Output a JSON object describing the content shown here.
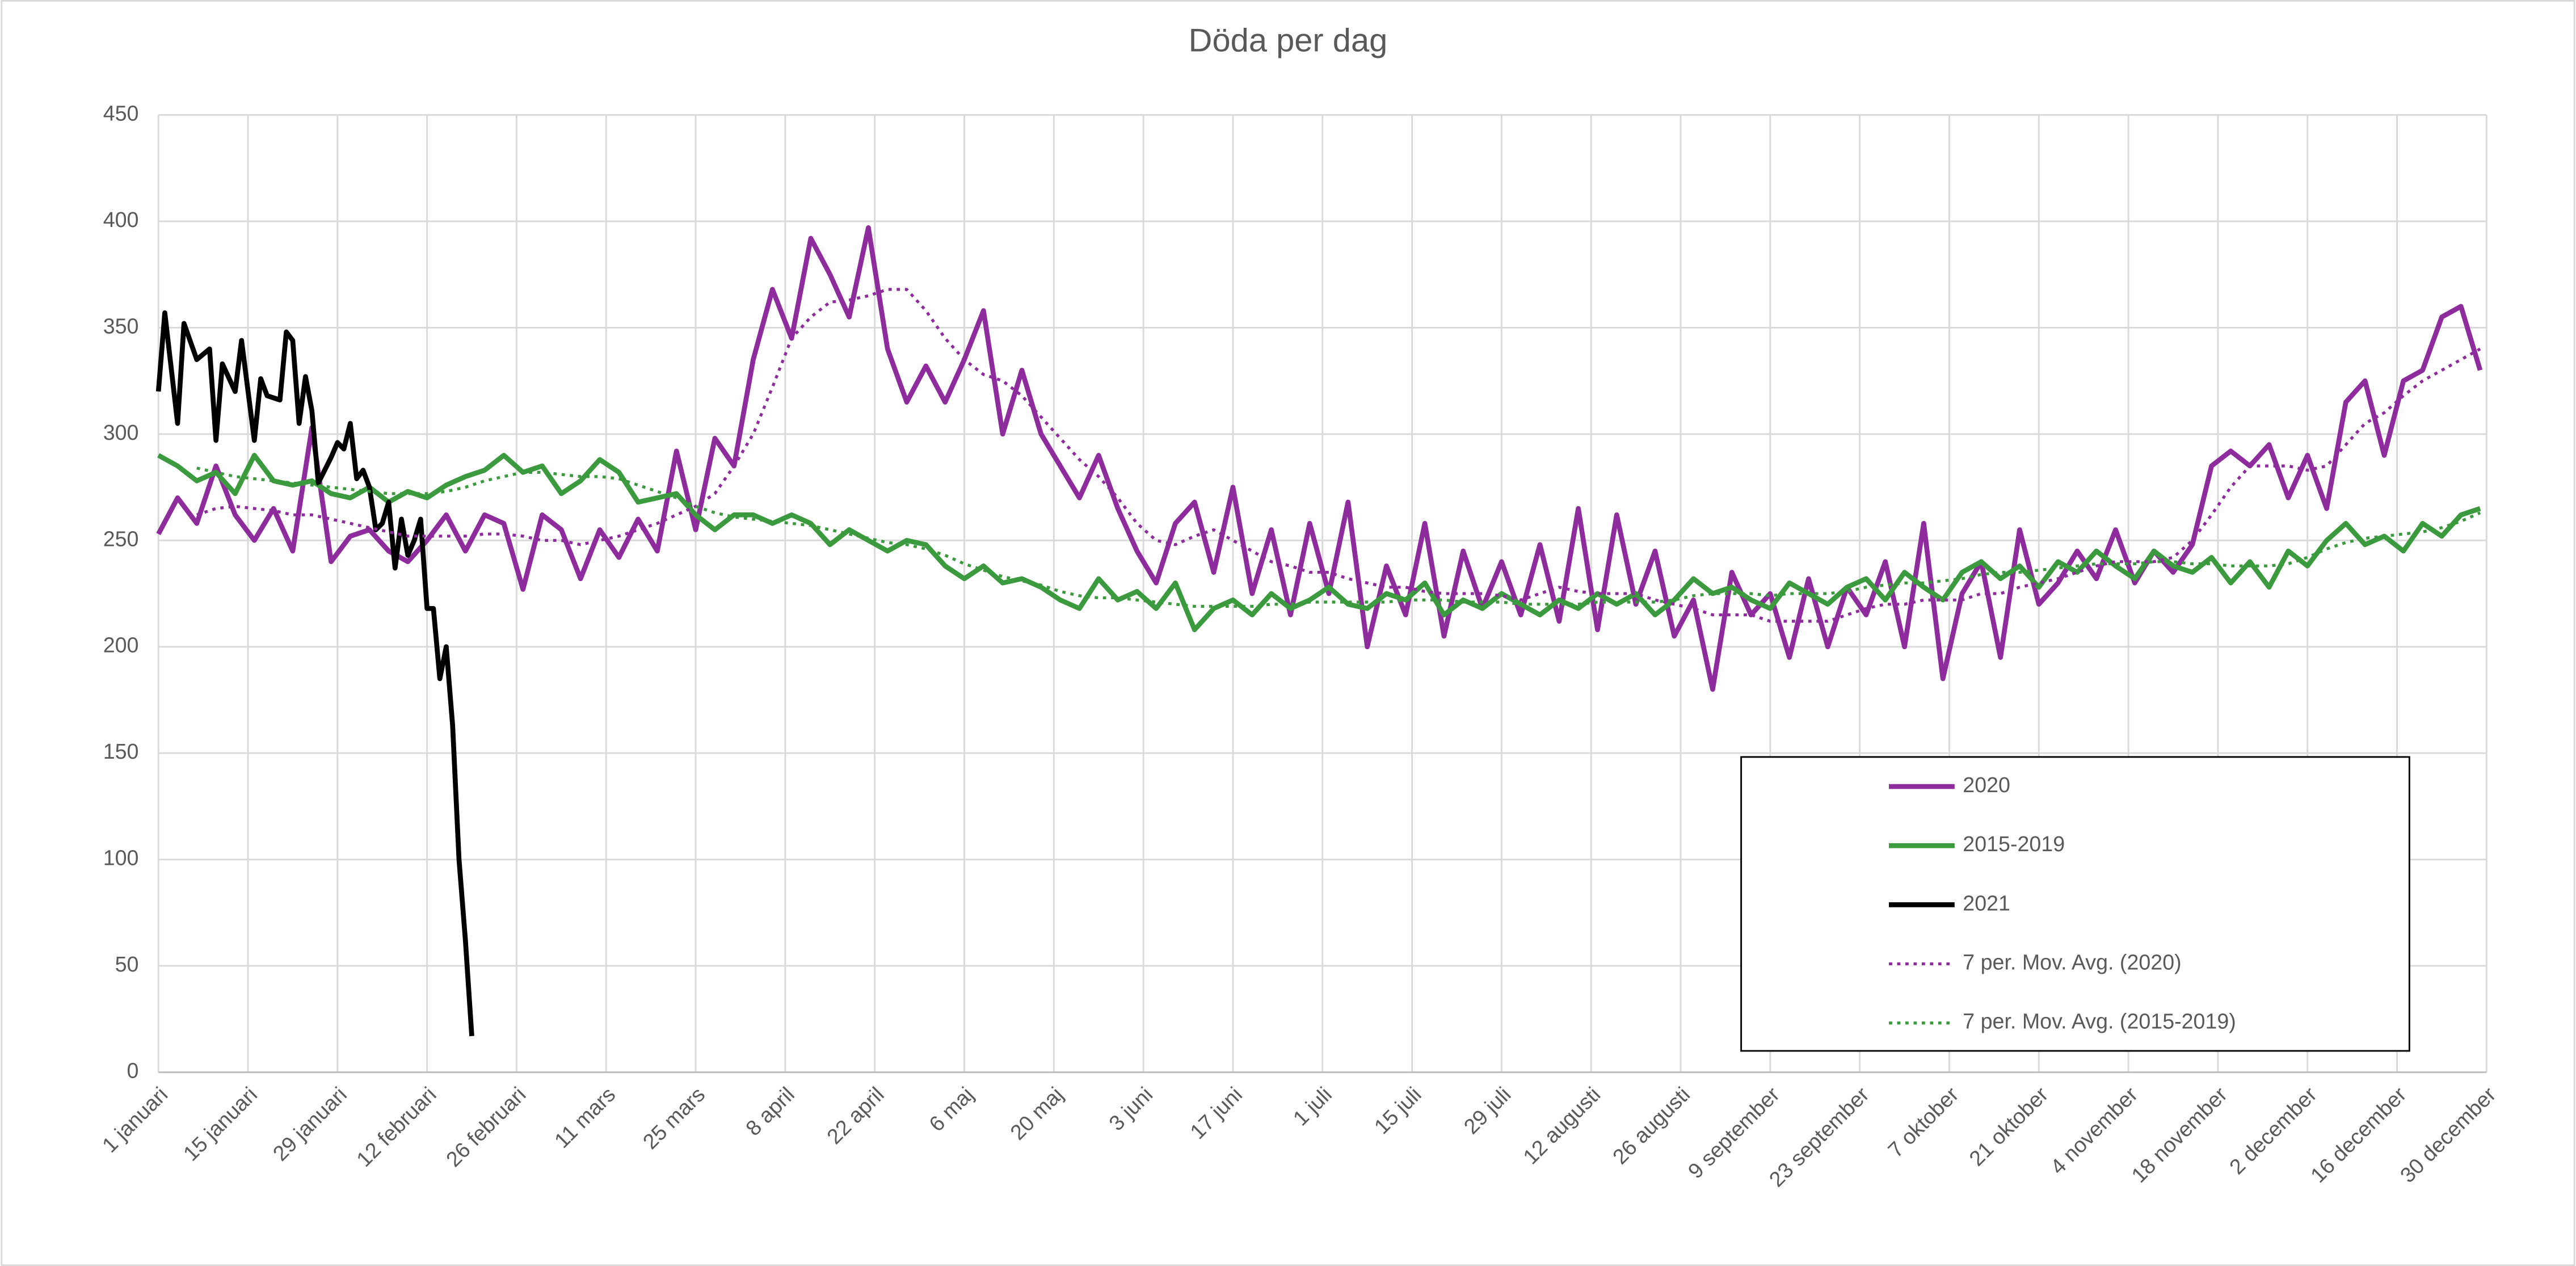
{
  "chart_data": {
    "type": "line",
    "title": "Döda per dag",
    "xlim": [
      0,
      364
    ],
    "xticks": [
      {
        "value": 0,
        "label": "1 januari"
      },
      {
        "value": 14,
        "label": "15 januari"
      },
      {
        "value": 28,
        "label": "29 januari"
      },
      {
        "value": 42,
        "label": "12 februari"
      },
      {
        "value": 56,
        "label": "26 februari"
      },
      {
        "value": 70,
        "label": "11 mars"
      },
      {
        "value": 84,
        "label": "25 mars"
      },
      {
        "value": 98,
        "label": "8 april"
      },
      {
        "value": 112,
        "label": "22 april"
      },
      {
        "value": 126,
        "label": "6 maj"
      },
      {
        "value": 140,
        "label": "20 maj"
      },
      {
        "value": 154,
        "label": "3 juni"
      },
      {
        "value": 168,
        "label": "17 juni"
      },
      {
        "value": 182,
        "label": "1 juli"
      },
      {
        "value": 196,
        "label": "15 juli"
      },
      {
        "value": 210,
        "label": "29 juli"
      },
      {
        "value": 224,
        "label": "12 augusti"
      },
      {
        "value": 238,
        "label": "26 augusti"
      },
      {
        "value": 252,
        "label": "9 september"
      },
      {
        "value": 266,
        "label": "23 september"
      },
      {
        "value": 280,
        "label": "7 oktober"
      },
      {
        "value": 294,
        "label": "21 oktober"
      },
      {
        "value": 308,
        "label": "4 november"
      },
      {
        "value": 322,
        "label": "18 november"
      },
      {
        "value": 336,
        "label": "2 december"
      },
      {
        "value": 350,
        "label": "16 december"
      },
      {
        "value": 364,
        "label": "30 december"
      }
    ],
    "ylim": [
      0,
      450
    ],
    "yticks": [
      0,
      50,
      100,
      150,
      200,
      250,
      300,
      350,
      400,
      450
    ],
    "grid": true,
    "legend": "lower right",
    "x": [
      0,
      3,
      6,
      9,
      12,
      15,
      18,
      21,
      24,
      27,
      30,
      33,
      36,
      39,
      42,
      45,
      48,
      51,
      54,
      57,
      60,
      63,
      66,
      69,
      72,
      75,
      78,
      81,
      84,
      87,
      90,
      93,
      96,
      99,
      102,
      105,
      108,
      111,
      114,
      117,
      120,
      123,
      126,
      129,
      132,
      135,
      138,
      141,
      144,
      147,
      150,
      153,
      156,
      159,
      162,
      165,
      168,
      171,
      174,
      177,
      180,
      183,
      186,
      189,
      192,
      195,
      198,
      201,
      204,
      207,
      210,
      213,
      216,
      219,
      222,
      225,
      228,
      231,
      234,
      237,
      240,
      243,
      246,
      249,
      252,
      255,
      258,
      261,
      264,
      267,
      270,
      273,
      276,
      279,
      282,
      285,
      288,
      291,
      294,
      297,
      300,
      303,
      306,
      309,
      312,
      315,
      318,
      321,
      324,
      327,
      330,
      333,
      336,
      339,
      342,
      345,
      348,
      351,
      354,
      357,
      360,
      363
    ],
    "series": [
      {
        "name": "2020",
        "color": "#8e2c9e",
        "style": "solid",
        "width": 3,
        "values": [
          253,
          270,
          258,
          285,
          262,
          250,
          265,
          245,
          303,
          240,
          252,
          255,
          245,
          240,
          250,
          262,
          245,
          262,
          258,
          227,
          262,
          255,
          232,
          255,
          242,
          260,
          245,
          292,
          255,
          298,
          285,
          335,
          368,
          345,
          392,
          375,
          355,
          397,
          340,
          315,
          332,
          315,
          335,
          358,
          300,
          330,
          300,
          285,
          270,
          290,
          265,
          245,
          230,
          258,
          268,
          235,
          275,
          225,
          255,
          215,
          258,
          225,
          268,
          200,
          238,
          215,
          258,
          205,
          245,
          218,
          240,
          215,
          248,
          212,
          265,
          208,
          262,
          220,
          245,
          205,
          222,
          180,
          235,
          215,
          225,
          195,
          232,
          200,
          228,
          215,
          240,
          200,
          258,
          185,
          225,
          240,
          195,
          255,
          220,
          230,
          245,
          232,
          255,
          230,
          245,
          235,
          248,
          285,
          292,
          285,
          295,
          270,
          290,
          265,
          315,
          325,
          290,
          325,
          330,
          355,
          360,
          330
        ]
      },
      {
        "name": "2015-2019",
        "color": "#3a9a3d",
        "style": "solid",
        "width": 3,
        "values": [
          290,
          285,
          278,
          282,
          272,
          290,
          278,
          276,
          278,
          272,
          270,
          275,
          268,
          273,
          270,
          276,
          280,
          283,
          290,
          282,
          285,
          272,
          278,
          288,
          282,
          268,
          270,
          272,
          262,
          255,
          262,
          262,
          258,
          262,
          258,
          248,
          255,
          250,
          245,
          250,
          248,
          238,
          232,
          238,
          230,
          232,
          228,
          222,
          218,
          232,
          222,
          226,
          218,
          230,
          208,
          218,
          222,
          215,
          225,
          218,
          222,
          228,
          220,
          218,
          225,
          222,
          230,
          215,
          222,
          218,
          225,
          220,
          215,
          222,
          218,
          225,
          220,
          225,
          215,
          222,
          232,
          225,
          228,
          222,
          218,
          230,
          225,
          220,
          228,
          232,
          222,
          235,
          228,
          222,
          235,
          240,
          232,
          238,
          228,
          240,
          235,
          245,
          238,
          232,
          245,
          238,
          235,
          242,
          230,
          240,
          228,
          245,
          238,
          250,
          258,
          248,
          252,
          245,
          258,
          252,
          262,
          265
        ]
      },
      {
        "name": "2021",
        "color": "#000000",
        "style": "solid",
        "width": 3,
        "x": [
          0,
          1,
          3,
          4,
          6,
          8,
          9,
          10,
          12,
          13,
          15,
          16,
          17,
          19,
          20,
          21,
          22,
          23,
          24,
          25,
          27,
          28,
          29,
          30,
          31,
          32,
          33,
          34,
          35,
          36,
          37,
          38,
          39,
          40,
          41,
          42,
          43,
          44,
          45,
          46,
          47,
          48,
          49
        ],
        "values": [
          320,
          357,
          305,
          352,
          335,
          340,
          297,
          333,
          320,
          344,
          297,
          326,
          318,
          316,
          348,
          344,
          305,
          327,
          311,
          277,
          289,
          296,
          293,
          305,
          279,
          283,
          275,
          255,
          258,
          268,
          237,
          260,
          243,
          250,
          260,
          218,
          218,
          185,
          200,
          163,
          100,
          62,
          17
        ]
      },
      {
        "name": "7 per. Mov. Avg. (2020)",
        "color": "#8e2c9e",
        "style": "dotted",
        "width": 1.8,
        "values": [
          null,
          null,
          262,
          265,
          266,
          265,
          264,
          262,
          262,
          260,
          258,
          256,
          254,
          252,
          252,
          252,
          252,
          253,
          253,
          252,
          250,
          250,
          248,
          250,
          252,
          255,
          258,
          262,
          266,
          272,
          285,
          300,
          322,
          345,
          355,
          362,
          363,
          365,
          368,
          368,
          358,
          345,
          335,
          328,
          325,
          318,
          308,
          298,
          288,
          280,
          270,
          258,
          250,
          248,
          252,
          255,
          250,
          245,
          240,
          238,
          235,
          235,
          232,
          230,
          228,
          228,
          226,
          225,
          225,
          225,
          224,
          222,
          225,
          228,
          226,
          225,
          225,
          225,
          222,
          220,
          218,
          215,
          215,
          215,
          212,
          212,
          212,
          212,
          215,
          218,
          220,
          220,
          222,
          222,
          222,
          225,
          225,
          228,
          230,
          232,
          235,
          238,
          240,
          240,
          240,
          242,
          250,
          262,
          275,
          285,
          285,
          285,
          283,
          285,
          295,
          305,
          310,
          318,
          325,
          330,
          335,
          340
        ]
      },
      {
        "name": "7 per. Mov. Avg. (2015-2019)",
        "color": "#3a9a3d",
        "style": "dotted",
        "width": 1.8,
        "values": [
          null,
          null,
          284,
          282,
          280,
          279,
          278,
          277,
          276,
          275,
          274,
          273,
          272,
          272,
          272,
          273,
          275,
          278,
          280,
          282,
          282,
          281,
          280,
          280,
          279,
          276,
          273,
          270,
          266,
          263,
          261,
          260,
          259,
          258,
          257,
          255,
          253,
          251,
          249,
          248,
          246,
          243,
          239,
          236,
          233,
          231,
          229,
          226,
          224,
          223,
          223,
          222,
          221,
          220,
          219,
          219,
          219,
          219,
          220,
          220,
          221,
          221,
          221,
          221,
          221,
          222,
          222,
          222,
          221,
          221,
          221,
          220,
          220,
          220,
          220,
          221,
          221,
          221,
          221,
          222,
          224,
          225,
          225,
          225,
          224,
          225,
          225,
          225,
          226,
          228,
          229,
          230,
          230,
          231,
          232,
          234,
          235,
          235,
          236,
          237,
          238,
          239,
          239,
          239,
          240,
          240,
          239,
          239,
          238,
          238,
          238,
          239,
          242,
          246,
          249,
          251,
          252,
          253,
          254,
          256,
          259,
          263
        ]
      }
    ]
  }
}
